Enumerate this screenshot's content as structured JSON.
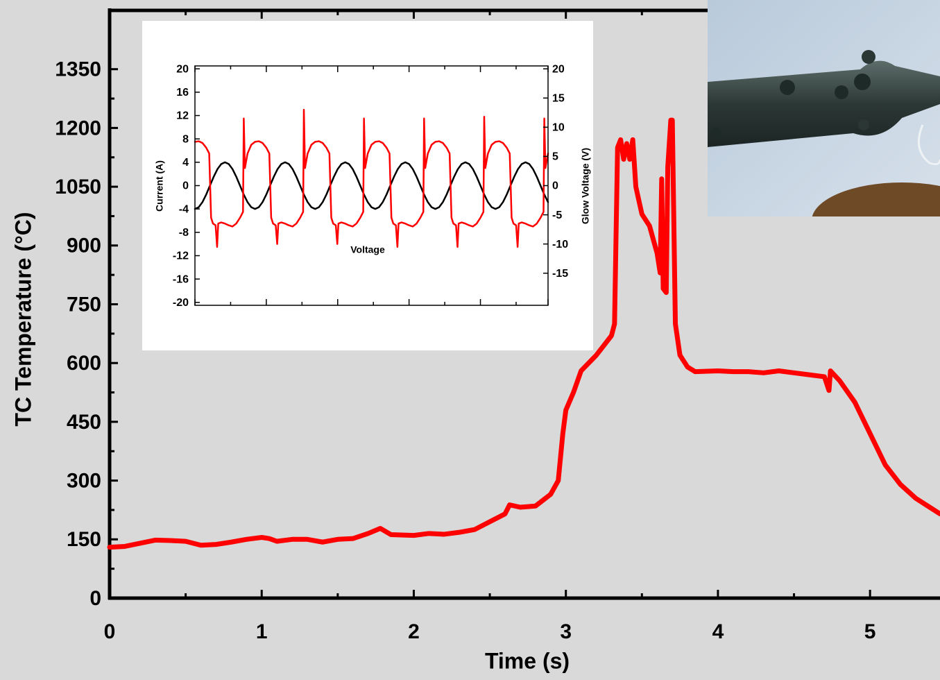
{
  "chart_data": [
    {
      "type": "line",
      "xlabel": "Time (s)",
      "ylabel": "TC Temperature (°C)",
      "xlim": [
        0,
        5.46
      ],
      "ylim": [
        0,
        1500
      ],
      "xticks": [
        0,
        1,
        2,
        3,
        4,
        5
      ],
      "yticks": [
        0,
        150,
        300,
        450,
        600,
        750,
        900,
        1050,
        1200,
        1350
      ],
      "color": "#ff0000",
      "x": [
        0,
        0.1,
        0.2,
        0.3,
        0.4,
        0.5,
        0.6,
        0.7,
        0.8,
        0.9,
        1.0,
        1.05,
        1.1,
        1.2,
        1.3,
        1.4,
        1.5,
        1.6,
        1.7,
        1.78,
        1.85,
        2.0,
        2.1,
        2.2,
        2.3,
        2.4,
        2.5,
        2.6,
        2.63,
        2.7,
        2.8,
        2.9,
        2.95,
        2.98,
        3.0,
        3.05,
        3.1,
        3.2,
        3.3,
        3.32,
        3.34,
        3.36,
        3.38,
        3.4,
        3.42,
        3.44,
        3.46,
        3.5,
        3.55,
        3.6,
        3.62,
        3.63,
        3.64,
        3.66,
        3.67,
        3.69,
        3.7,
        3.72,
        3.75,
        3.8,
        3.85,
        4.0,
        4.1,
        4.2,
        4.3,
        4.4,
        4.5,
        4.6,
        4.7,
        4.73,
        4.74,
        4.8,
        4.9,
        5.0,
        5.1,
        5.2,
        5.3,
        5.4,
        5.46
      ],
      "values": [
        130,
        132,
        140,
        148,
        147,
        145,
        135,
        137,
        143,
        150,
        155,
        152,
        145,
        150,
        150,
        143,
        150,
        152,
        165,
        178,
        162,
        160,
        165,
        163,
        168,
        175,
        195,
        215,
        238,
        232,
        235,
        265,
        300,
        420,
        480,
        525,
        580,
        620,
        670,
        700,
        1150,
        1170,
        1120,
        1160,
        1120,
        1170,
        1050,
        980,
        950,
        880,
        830,
        1070,
        790,
        780,
        1100,
        1220,
        1220,
        700,
        620,
        590,
        578,
        580,
        578,
        578,
        575,
        580,
        575,
        570,
        565,
        530,
        580,
        555,
        500,
        420,
        340,
        290,
        255,
        230,
        215
      ]
    },
    {
      "type": "line",
      "ylabel": "Current (A)",
      "y2label": "Glow Voltage (V)",
      "annotation": "Voltage",
      "xlim": [
        0,
        94
      ],
      "ylim": [
        -20.5,
        20.5
      ],
      "y2lim": [
        -20.5,
        20.5
      ],
      "xticks": [
        0,
        9.5,
        19,
        28.5,
        38,
        47.5,
        57,
        66.5,
        76,
        85.5,
        94
      ],
      "yticks": [
        20,
        16,
        12,
        8,
        4,
        0,
        -4,
        -8,
        -12,
        -16,
        -20
      ],
      "y2ticks": [
        20,
        15,
        10,
        5,
        0,
        -5,
        -10,
        -15
      ],
      "series": [
        {
          "color": "#000000",
          "x": [
            0,
            1,
            2,
            3,
            4,
            5,
            6,
            7,
            8,
            9,
            10,
            11,
            12,
            13,
            14,
            15,
            16,
            17,
            18,
            19,
            20,
            21,
            22,
            23,
            24,
            25,
            26,
            27,
            28,
            29,
            30,
            31,
            32,
            33,
            34,
            35,
            36,
            37,
            38,
            39,
            40,
            41,
            42,
            43,
            44,
            45,
            46,
            47,
            48,
            49,
            50,
            51,
            52,
            53,
            54,
            55,
            56,
            57,
            58,
            59,
            60,
            61,
            62,
            63,
            64,
            65,
            66,
            67,
            68,
            69,
            70,
            71,
            72,
            73,
            74,
            75,
            76,
            77,
            78,
            79,
            80,
            81,
            82,
            83,
            84,
            85,
            86,
            87,
            88,
            89,
            90,
            91,
            92,
            93,
            94
          ],
          "values": [
            -4,
            -3.7,
            -2.83,
            -1.53,
            0,
            1.53,
            2.83,
            3.7,
            4,
            3.7,
            2.83,
            1.53,
            0,
            -1.53,
            -2.83,
            -3.7,
            -4,
            -3.7,
            -2.83,
            -1.53,
            0,
            1.53,
            2.83,
            3.7,
            4,
            3.7,
            2.83,
            1.53,
            0,
            -1.53,
            -2.83,
            -3.7,
            -4,
            -3.7,
            -2.83,
            -1.53,
            0,
            1.53,
            2.83,
            3.7,
            4,
            3.7,
            2.83,
            1.53,
            0,
            -1.53,
            -2.83,
            -3.7,
            -4,
            -3.7,
            -2.83,
            -1.53,
            0,
            1.53,
            2.83,
            3.7,
            4,
            3.7,
            2.83,
            1.53,
            0,
            -1.53,
            -2.83,
            -3.7,
            -4,
            -3.7,
            -2.83,
            -1.53,
            0,
            1.53,
            2.83,
            3.7,
            4,
            3.7,
            2.83,
            1.53,
            0,
            -1.53,
            -2.83,
            -3.7,
            -4,
            -3.7,
            -2.83,
            -1.53,
            0,
            1.53,
            2.83,
            3.7,
            4,
            3.7,
            2.83,
            1.53,
            0,
            -1.53,
            -2.83
          ]
        },
        {
          "color": "#ff0000",
          "axis": "y2",
          "x": [
            0,
            1,
            2,
            3,
            3.8,
            4.3,
            4.8,
            5.5,
            5.9,
            6.2,
            7,
            8,
            9,
            10,
            11,
            12,
            12.8,
            13,
            13.3,
            14,
            15,
            16,
            17,
            18,
            19,
            19.8,
            20.3,
            20.8,
            21.5,
            21.9,
            22.2,
            23,
            24,
            25,
            26,
            27,
            28,
            28.8,
            29,
            29.3,
            30,
            31,
            32,
            33,
            34,
            35,
            35.8,
            36.3,
            36.8,
            37.5,
            37.9,
            38.2,
            39,
            40,
            41,
            42,
            43,
            44,
            44.8,
            45,
            45.3,
            46,
            47,
            48,
            49,
            50,
            51,
            51.8,
            52.3,
            52.8,
            53.5,
            53.9,
            54.2,
            55,
            56,
            57,
            58,
            59,
            60,
            60.8,
            61,
            61.3,
            62,
            63,
            64,
            65,
            66,
            67,
            67.8,
            68.3,
            68.8,
            69.5,
            69.9,
            70.2,
            71,
            72,
            73,
            74,
            75,
            76,
            76.8,
            77,
            77.3,
            78,
            79,
            80,
            81,
            82,
            83,
            83.8,
            84.3,
            84.8,
            85.5,
            85.9,
            86.2,
            87,
            88,
            89,
            90,
            91,
            92,
            92.8,
            93,
            93.3,
            94
          ],
          "values": [
            7.5,
            7.6,
            7.3,
            6.5,
            5.5,
            -5.5,
            -6.5,
            -6.8,
            -10.5,
            -6.5,
            -6.3,
            -6.5,
            -6.8,
            -7,
            -6.5,
            -5.5,
            -4.5,
            11.5,
            3,
            5.5,
            7,
            7.5,
            7.6,
            7.3,
            6.5,
            5.5,
            -5.5,
            -6.5,
            -6.8,
            -10,
            -6.5,
            -6.3,
            -6.5,
            -6.8,
            -7,
            -6.5,
            -5.5,
            -4.5,
            13,
            3,
            5.5,
            7,
            7.5,
            7.6,
            7.3,
            6.5,
            5.5,
            -5.5,
            -6.5,
            -6.8,
            -10,
            -6.5,
            -6.3,
            -6.5,
            -6.8,
            -7,
            -6.5,
            -5.5,
            -4.5,
            11.5,
            3,
            5.5,
            7,
            7.5,
            7.6,
            7.3,
            6.5,
            5.5,
            -5.5,
            -6.5,
            -6.8,
            -10.5,
            -6.5,
            -6.3,
            -6.5,
            -6.8,
            -7,
            -6.5,
            -5.5,
            -4.5,
            11.5,
            3,
            5.5,
            7,
            7.5,
            7.6,
            7.3,
            6.5,
            5.5,
            -5.5,
            -6.5,
            -6.8,
            -10.5,
            -6.5,
            -6.3,
            -6.5,
            -6.8,
            -7,
            -6.5,
            -5.5,
            -4.5,
            11.8,
            3,
            5.5,
            7,
            7.5,
            7.6,
            7.3,
            6.5,
            5.5,
            -5.5,
            -6.5,
            -6.8,
            -10.5,
            -6.5,
            -6.3,
            -6.5,
            -6.8,
            -7,
            -6.5,
            -5.5,
            -4.5,
            11.5,
            3,
            5.5
          ]
        }
      ]
    }
  ]
}
